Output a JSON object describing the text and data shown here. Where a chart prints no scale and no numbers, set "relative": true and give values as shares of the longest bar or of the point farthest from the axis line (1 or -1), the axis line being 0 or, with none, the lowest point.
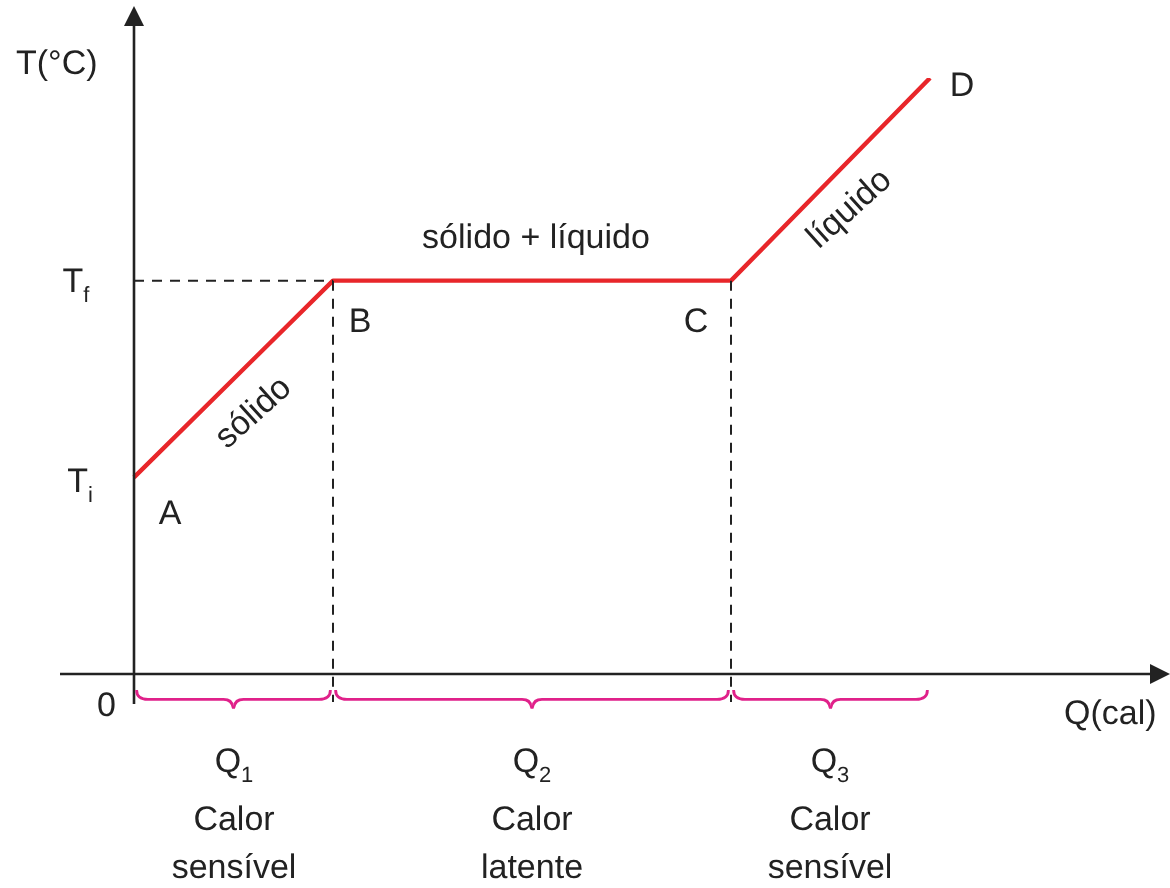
{
  "chart_data": {
    "type": "line",
    "relative": true,
    "xlabel": "Q(cal)",
    "ylabel": "T(°C)",
    "categories": [
      null,
      null,
      null,
      null,
      null
    ],
    "values": [
      0.33,
      0.66,
      0.66,
      0.66,
      1
    ],
    "color": "#e8262a",
    "marker": "none",
    "line_style": "solid",
    "legend": false,
    "annotations": [
      "0",
      "T$_{f}$",
      "T$_{i}$",
      "A",
      "B",
      "C",
      "D",
      "sólido",
      "sólido + líquido",
      "líquido",
      "Q$_{1}$",
      "Q$_{2}$",
      "Q$_{3}$",
      "Calor sensível",
      "Calor latente",
      "Calor sensível"
    ]
  }
}
